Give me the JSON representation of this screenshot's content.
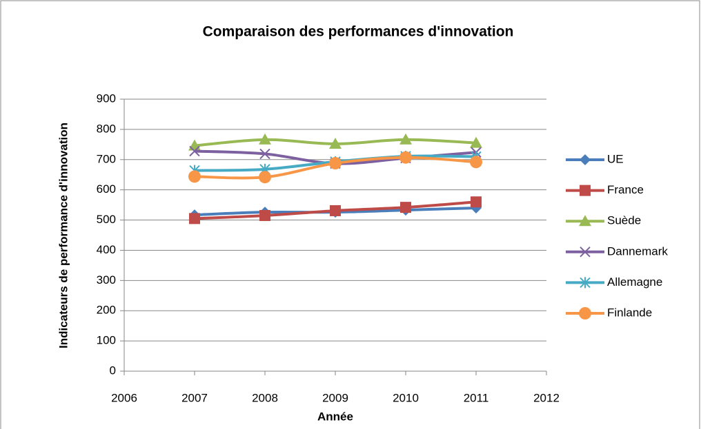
{
  "chart_data": {
    "type": "line",
    "title": "Comparaison des performances d'innovation",
    "x_label": "Année",
    "y_label": "Indicateurs de performance d'innovation",
    "x": [
      2007,
      2008,
      2009,
      2010,
      2011
    ],
    "series": [
      {
        "name": "UE",
        "color": "#4a7ebb",
        "marker": "diamond",
        "values": [
          517,
          526,
          526,
          533,
          540
        ]
      },
      {
        "name": "France",
        "color": "#be4b48",
        "marker": "square",
        "values": [
          505,
          515,
          531,
          542,
          560
        ]
      },
      {
        "name": "Suède",
        "color": "#98b954",
        "marker": "triangle",
        "values": [
          746,
          766,
          752,
          766,
          755
        ]
      },
      {
        "name": "Dannemark",
        "color": "#7d60a0",
        "marker": "x",
        "values": [
          728,
          719,
          687,
          705,
          724
        ]
      },
      {
        "name": "Allemagne",
        "color": "#46aac5",
        "marker": "asterisk",
        "values": [
          664,
          668,
          693,
          711,
          710
        ]
      },
      {
        "name": "Finlande",
        "color": "#f79646",
        "marker": "circle",
        "values": [
          644,
          642,
          688,
          707,
          692
        ]
      }
    ],
    "xlim": [
      2006,
      2012
    ],
    "xticks": [
      2006,
      2007,
      2008,
      2009,
      2010,
      2011,
      2012
    ],
    "ylim": [
      0,
      900
    ],
    "yticks": [
      0,
      100,
      200,
      300,
      400,
      500,
      600,
      700,
      800,
      900
    ],
    "grid": true,
    "smooth": true,
    "legend": "right"
  }
}
